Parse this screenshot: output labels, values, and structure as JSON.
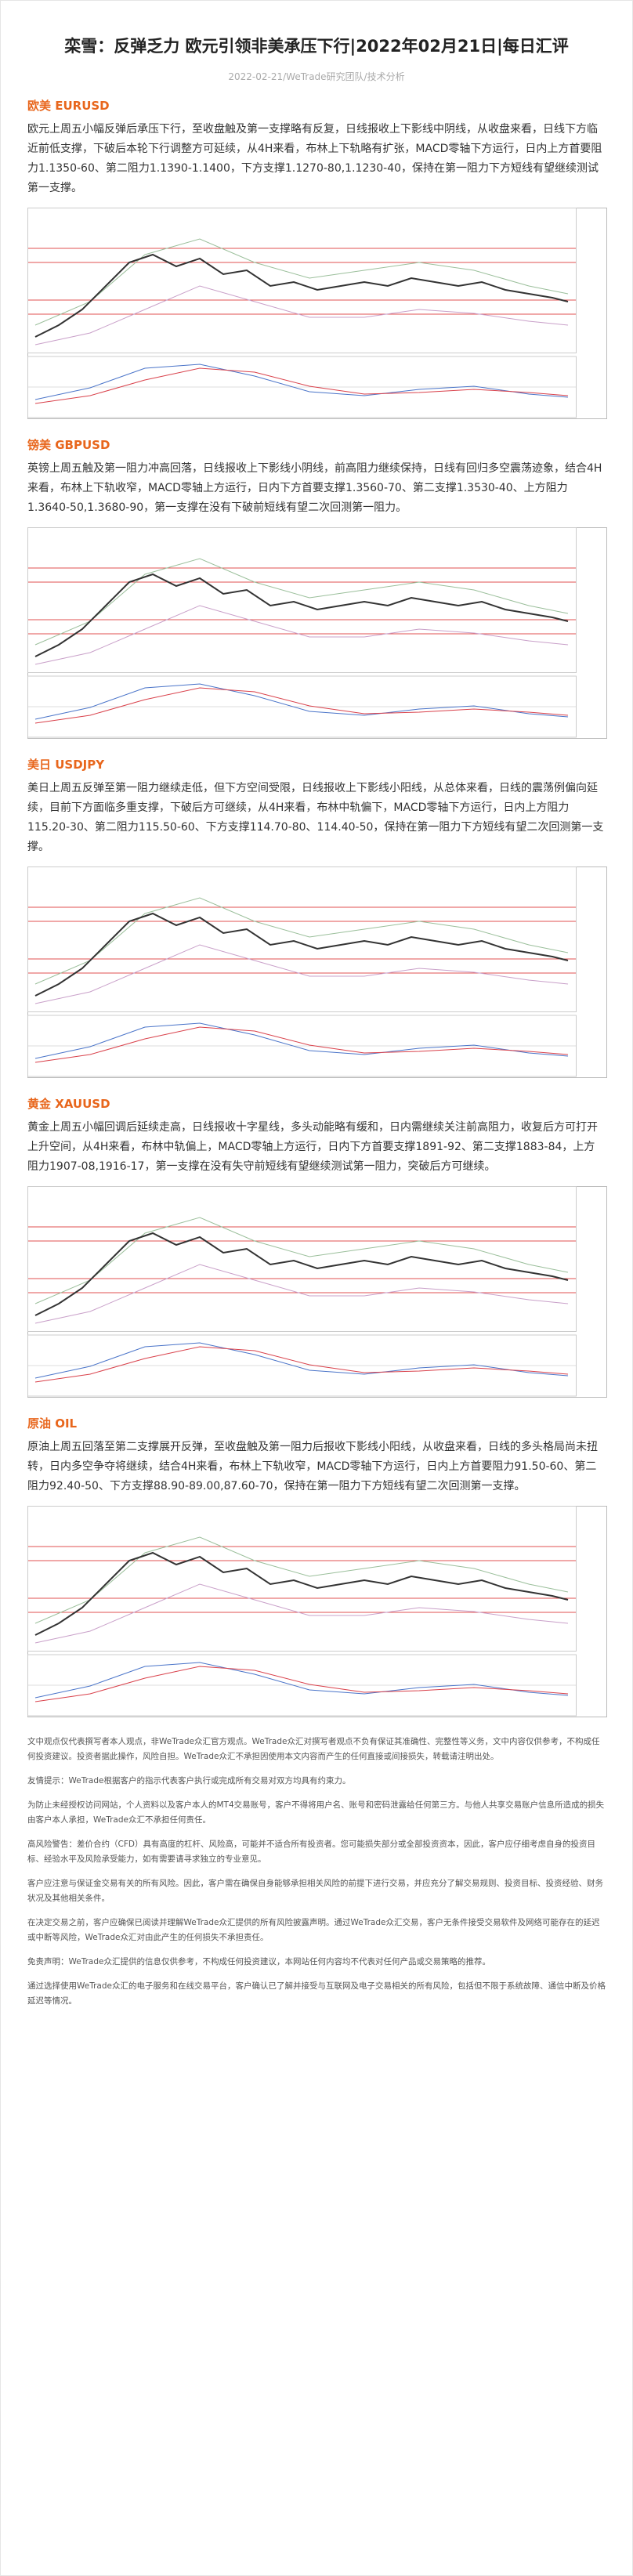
{
  "header": {
    "title": "栾雪：反弹乏力 欧元引领非美承压下行|2022年02月21日|每日汇评",
    "meta": "2022-02-21/WeTrade研究团队/技术分析"
  },
  "sections": [
    {
      "heading": "欧美 EURUSD",
      "body": "欧元上周五小幅反弹后承压下行，至收盘触及第一支撑略有反复，日线报收上下影线中阴线，从收盘来看，日线下方临近前低支撑，下破后本轮下行调整方可延续，从4H来看，布林上下轨略有扩张，MACD零轴下方运行，日内上方首要阻力1.1350-60、第二阻力1.1390-1.1400，下方支撑1.1270-80,1.1230-40，保持在第一阻力下方短线有望继续测试第一支撑。"
    },
    {
      "heading": "镑美 GBPUSD",
      "body": "英镑上周五触及第一阻力冲高回落，日线报收上下影线小阴线，前高阻力继续保持，日线有回归多空震荡迹象，结合4H来看，布林上下轨收窄，MACD零轴上方运行，日内下方首要支撑1.3560-70、第二支撑1.3530-40、上方阻力1.3640-50,1.3680-90，第一支撑在没有下破前短线有望二次回测第一阻力。"
    },
    {
      "heading": "美日 USDJPY",
      "body": "美日上周五反弹至第一阻力继续走低，但下方空间受限，日线报收上下影线小阳线，从总体来看，日线的震荡例偏向延续，目前下方面临多重支撑，下破后方可继续，从4H来看，布林中轨偏下，MACD零轴下方运行，日内上方阻力115.20-30、第二阻力115.50-60、下方支撑114.70-80、114.40-50，保持在第一阻力下方短线有望二次回测第一支撑。"
    },
    {
      "heading": "黄金 XAUUSD",
      "body": "黄金上周五小幅回调后延续走高，日线报收十字星线，多头动能略有缓和，日内需继续关注前高阻力，收复后方可打开上升空间，从4H来看，布林中轨偏上，MACD零轴上方运行，日内下方首要支撑1891-92、第二支撑1883-84，上方阻力1907-08,1916-17，第一支撑在没有失守前短线有望继续测试第一阻力，突破后方可继续。"
    },
    {
      "heading": "原油 OIL",
      "body": "原油上周五回落至第二支撑展开反弹，至收盘触及第一阻力后报收下影线小阳线，从收盘来看，日线的多头格局尚未扭转，日内多空争夺将继续，结合4H来看，布林上下轨收窄，MACD零轴下方运行，日内上方首要阻力91.50-60、第二阻力92.40-50、下方支撑88.90-89.00,87.60-70，保持在第一阻力下方短线有望二次回测第一支撑。"
    }
  ],
  "disclaimer": [
    "文中观点仅代表撰写者本人观点，非WeTrade众汇官方观点。WeTrade众汇对撰写者观点不负有保证其准确性、完整性等义务，文中内容仅供参考，不构成任何投资建议。投资者据此操作，风险自担。WeTrade众汇不承担因使用本文内容而产生的任何直接或间接损失，转载请注明出处。",
    "友情提示：WeTrade根据客户的指示代表客户执行或完成所有交易对双方均具有约束力。",
    "为防止未经授权访问网站，个人资料以及客户本人的MT4交易账号，客户不得将用户名、账号和密码泄露给任何第三方。与他人共享交易账户信息所造成的损失由客户本人承担，WeTrade众汇不承担任何责任。",
    "高风险警告：差价合约（CFD）具有高度的杠杆、风险高，可能并不适合所有投资者。您可能损失部分或全部投资资本，因此，客户应仔细考虑自身的投资目标、经验水平及风险承受能力，如有需要请寻求独立的专业意见。",
    "客户应注意与保证金交易有关的所有风险。因此，客户需在确保自身能够承担相关风险的前提下进行交易，并应充分了解交易规则、投资目标、投资经验、财务状况及其他相关条件。",
    "在决定交易之前，客户应确保已阅读并理解WeTrade众汇提供的所有风险披露声明。通过WeTrade众汇交易，客户无条件接受交易软件及网络可能存在的延迟或中断等风险，WeTrade众汇对由此产生的任何损失不承担责任。",
    "免责声明：WeTrade众汇提供的信息仅供参考，不构成任何投资建议，本网站任何内容均不代表对任何产品或交易策略的推荐。",
    "通过选择使用WeTrade众汇的电子服务和在线交易平台，客户确认已了解并接受与互联网及电子交易相关的所有风险，包括但不限于系统故障、通信中断及价格延迟等情况。"
  ]
}
